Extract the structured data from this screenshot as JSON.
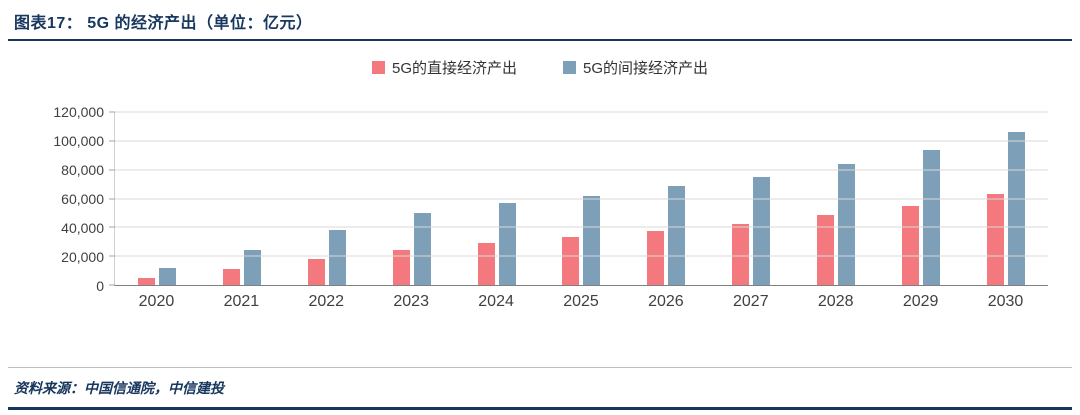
{
  "header": {
    "title": "图表17： 5G 的经济产出（单位：亿元）"
  },
  "legend": [
    {
      "label": "5G的直接经济产出",
      "color": "#f4797e"
    },
    {
      "label": "5G的间接经济产出",
      "color": "#7d9fb8"
    }
  ],
  "footer": {
    "source": "资料来源：中国信通院，中信建投"
  },
  "colors": {
    "accent_navy": "#17375e",
    "direct_series": "#f4797e",
    "indirect_series": "#7d9fb8",
    "gridline": "#d9d9d9"
  },
  "chart_data": {
    "type": "bar",
    "title": "5G 的经济产出（单位：亿元）",
    "categories": [
      "2020",
      "2021",
      "2022",
      "2023",
      "2024",
      "2025",
      "2026",
      "2027",
      "2028",
      "2029",
      "2030"
    ],
    "series": [
      {
        "name": "5G的直接经济产出",
        "color": "#f4797e",
        "values": [
          4840,
          11000,
          18000,
          24000,
          29000,
          33000,
          37500,
          42500,
          48500,
          55000,
          63000
        ]
      },
      {
        "name": "5G的间接经济产出",
        "color": "#7d9fb8",
        "values": [
          12000,
          24000,
          38000,
          50000,
          57000,
          62000,
          68500,
          75000,
          84000,
          93500,
          106000
        ]
      }
    ],
    "xlabel": "",
    "ylabel": "",
    "ylim": [
      0,
      120000
    ],
    "ytick_step": 20000,
    "ytick_labels": [
      "0",
      "20,000",
      "40,000",
      "60,000",
      "80,000",
      "100,000",
      "120,000"
    ],
    "grid": true,
    "legend_position": "top-center"
  }
}
